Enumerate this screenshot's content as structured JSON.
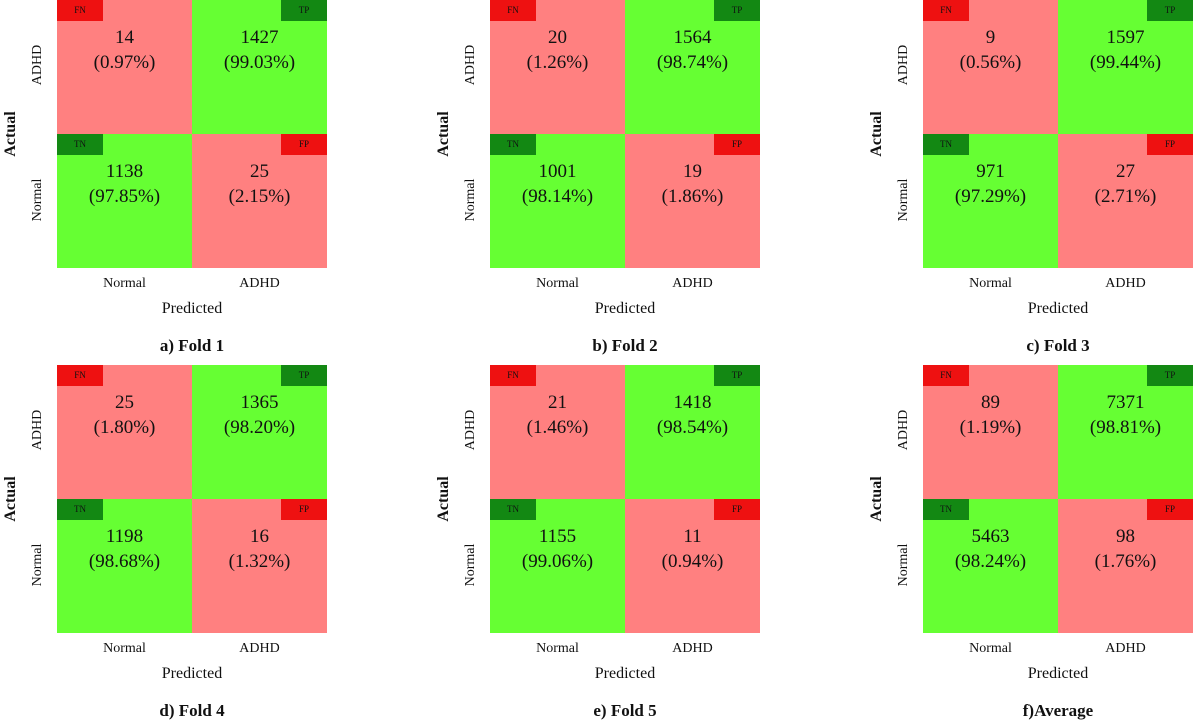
{
  "colors": {
    "correct": "#66ff33",
    "wrong": "#ff8080",
    "tag_tp_tn": "#138813",
    "tag_fn_fp": "#ee1111"
  },
  "chart_data": [
    {
      "type": "heatmap",
      "caption": "a) Fold 1",
      "xlabel": "Predicted",
      "ylabel": "Actual",
      "x_categories": [
        "Normal",
        "ADHD"
      ],
      "y_categories": [
        "ADHD",
        "Normal"
      ],
      "cells": {
        "FN": {
          "count": "14",
          "pct": "(0.97%)"
        },
        "TP": {
          "count": "1427",
          "pct": "(99.03%)"
        },
        "TN": {
          "count": "1138",
          "pct": "(97.85%)"
        },
        "FP": {
          "count": "25",
          "pct": "(2.15%)"
        }
      }
    },
    {
      "type": "heatmap",
      "caption": "b) Fold 2",
      "xlabel": "Predicted",
      "ylabel": "Actual",
      "x_categories": [
        "Normal",
        "ADHD"
      ],
      "y_categories": [
        "ADHD",
        "Normal"
      ],
      "cells": {
        "FN": {
          "count": "20",
          "pct": "(1.26%)"
        },
        "TP": {
          "count": "1564",
          "pct": "(98.74%)"
        },
        "TN": {
          "count": "1001",
          "pct": "(98.14%)"
        },
        "FP": {
          "count": "19",
          "pct": "(1.86%)"
        }
      }
    },
    {
      "type": "heatmap",
      "caption": "c) Fold 3",
      "xlabel": "Predicted",
      "ylabel": "Actual",
      "x_categories": [
        "Normal",
        "ADHD"
      ],
      "y_categories": [
        "ADHD",
        "Normal"
      ],
      "cells": {
        "FN": {
          "count": "9",
          "pct": "(0.56%)"
        },
        "TP": {
          "count": "1597",
          "pct": "(99.44%)"
        },
        "TN": {
          "count": "971",
          "pct": "(97.29%)"
        },
        "FP": {
          "count": "27",
          "pct": "(2.71%)"
        }
      }
    },
    {
      "type": "heatmap",
      "caption": "d) Fold 4",
      "xlabel": "Predicted",
      "ylabel": "Actual",
      "x_categories": [
        "Normal",
        "ADHD"
      ],
      "y_categories": [
        "ADHD",
        "Normal"
      ],
      "cells": {
        "FN": {
          "count": "25",
          "pct": "(1.80%)"
        },
        "TP": {
          "count": "1365",
          "pct": "(98.20%)"
        },
        "TN": {
          "count": "1198",
          "pct": "(98.68%)"
        },
        "FP": {
          "count": "16",
          "pct": "(1.32%)"
        }
      }
    },
    {
      "type": "heatmap",
      "caption": "e) Fold 5",
      "xlabel": "Predicted",
      "ylabel": "Actual",
      "x_categories": [
        "Normal",
        "ADHD"
      ],
      "y_categories": [
        "ADHD",
        "Normal"
      ],
      "cells": {
        "FN": {
          "count": "21",
          "pct": "(1.46%)"
        },
        "TP": {
          "count": "1418",
          "pct": "(98.54%)"
        },
        "TN": {
          "count": "1155",
          "pct": "(99.06%)"
        },
        "FP": {
          "count": "11",
          "pct": "(0.94%)"
        }
      }
    },
    {
      "type": "heatmap",
      "caption": "f)Average",
      "xlabel": "Predicted",
      "ylabel": "Actual",
      "x_categories": [
        "Normal",
        "ADHD"
      ],
      "y_categories": [
        "ADHD",
        "Normal"
      ],
      "cells": {
        "FN": {
          "count": "89",
          "pct": "(1.19%)"
        },
        "TP": {
          "count": "7371",
          "pct": "(98.81%)"
        },
        "TN": {
          "count": "5463",
          "pct": "(98.24%)"
        },
        "FP": {
          "count": "98",
          "pct": "(1.76%)"
        }
      }
    }
  ]
}
